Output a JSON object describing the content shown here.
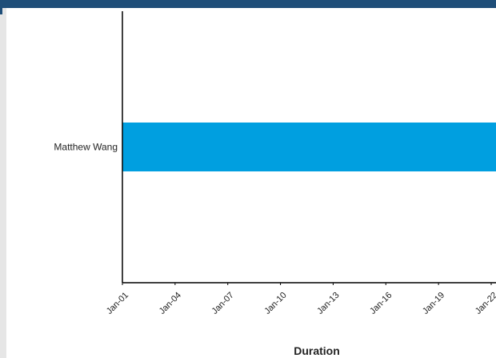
{
  "colors": {
    "header": "#1f4e79",
    "bar": "#009fe0",
    "axis": "#000000",
    "side_strip": "#e6e6e6"
  },
  "chart_data": {
    "type": "bar",
    "orientation": "horizontal",
    "categories": [
      "Matthew Wang"
    ],
    "series": [
      {
        "start": [
          "2021-01-01"
        ],
        "end": [
          "2021-01-23"
        ]
      }
    ],
    "x_tick_labels": [
      "Jan-01",
      "Jan-04",
      "Jan-07",
      "Jan-10",
      "Jan-13",
      "Jan-16",
      "Jan-19",
      "Jan-22"
    ],
    "xlim": [
      "2021-01-01",
      "2021-01-22"
    ],
    "xlabel": "Duration",
    "ylabel": "",
    "title": "",
    "grid": false,
    "legend": "none"
  }
}
